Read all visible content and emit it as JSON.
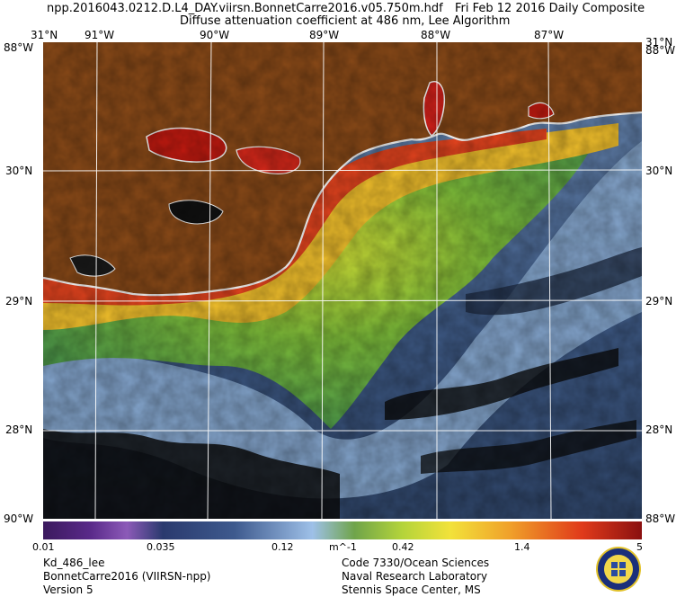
{
  "header": {
    "filename": "npp.2016043.0212.D.L4_DAY.viirsn.BonnetCarre2016.v05.750m.hdf",
    "date": "Fri Feb 12 2016 Daily Composite",
    "product": "Diffuse attenuation coefficient at 486 nm, Lee Algorithm"
  },
  "axes": {
    "lon_labels": [
      "91°W",
      "90°W",
      "89°W",
      "88°W",
      "87°W"
    ],
    "lat_labels": [
      "30°N",
      "29°N",
      "28°N"
    ],
    "corner_top": "31°N",
    "corner_bottom_left": "90°W",
    "corner_bottom_right": "88°W",
    "corner_top_right": "31°N",
    "corner_top_alt": "88°W"
  },
  "colorbar": {
    "ticks": [
      "0.01",
      "0.035",
      "0.12",
      "m^-1",
      "0.42",
      "1.4",
      "5"
    ],
    "scale": "log",
    "range": [
      0.01,
      5
    ]
  },
  "footer": {
    "left": [
      "Kd_486_lee",
      "BonnetCarre2016 (VIIRSN-npp)",
      "Version 5"
    ],
    "right": [
      "Code 7330/Ocean Sciences",
      "Naval Research Laboratory",
      "Stennis Space Center, MS"
    ]
  },
  "colors": {
    "land": "#8a4a18",
    "coast": "#ffffff",
    "clouds": "#000000",
    "grid": "#ffffff"
  }
}
